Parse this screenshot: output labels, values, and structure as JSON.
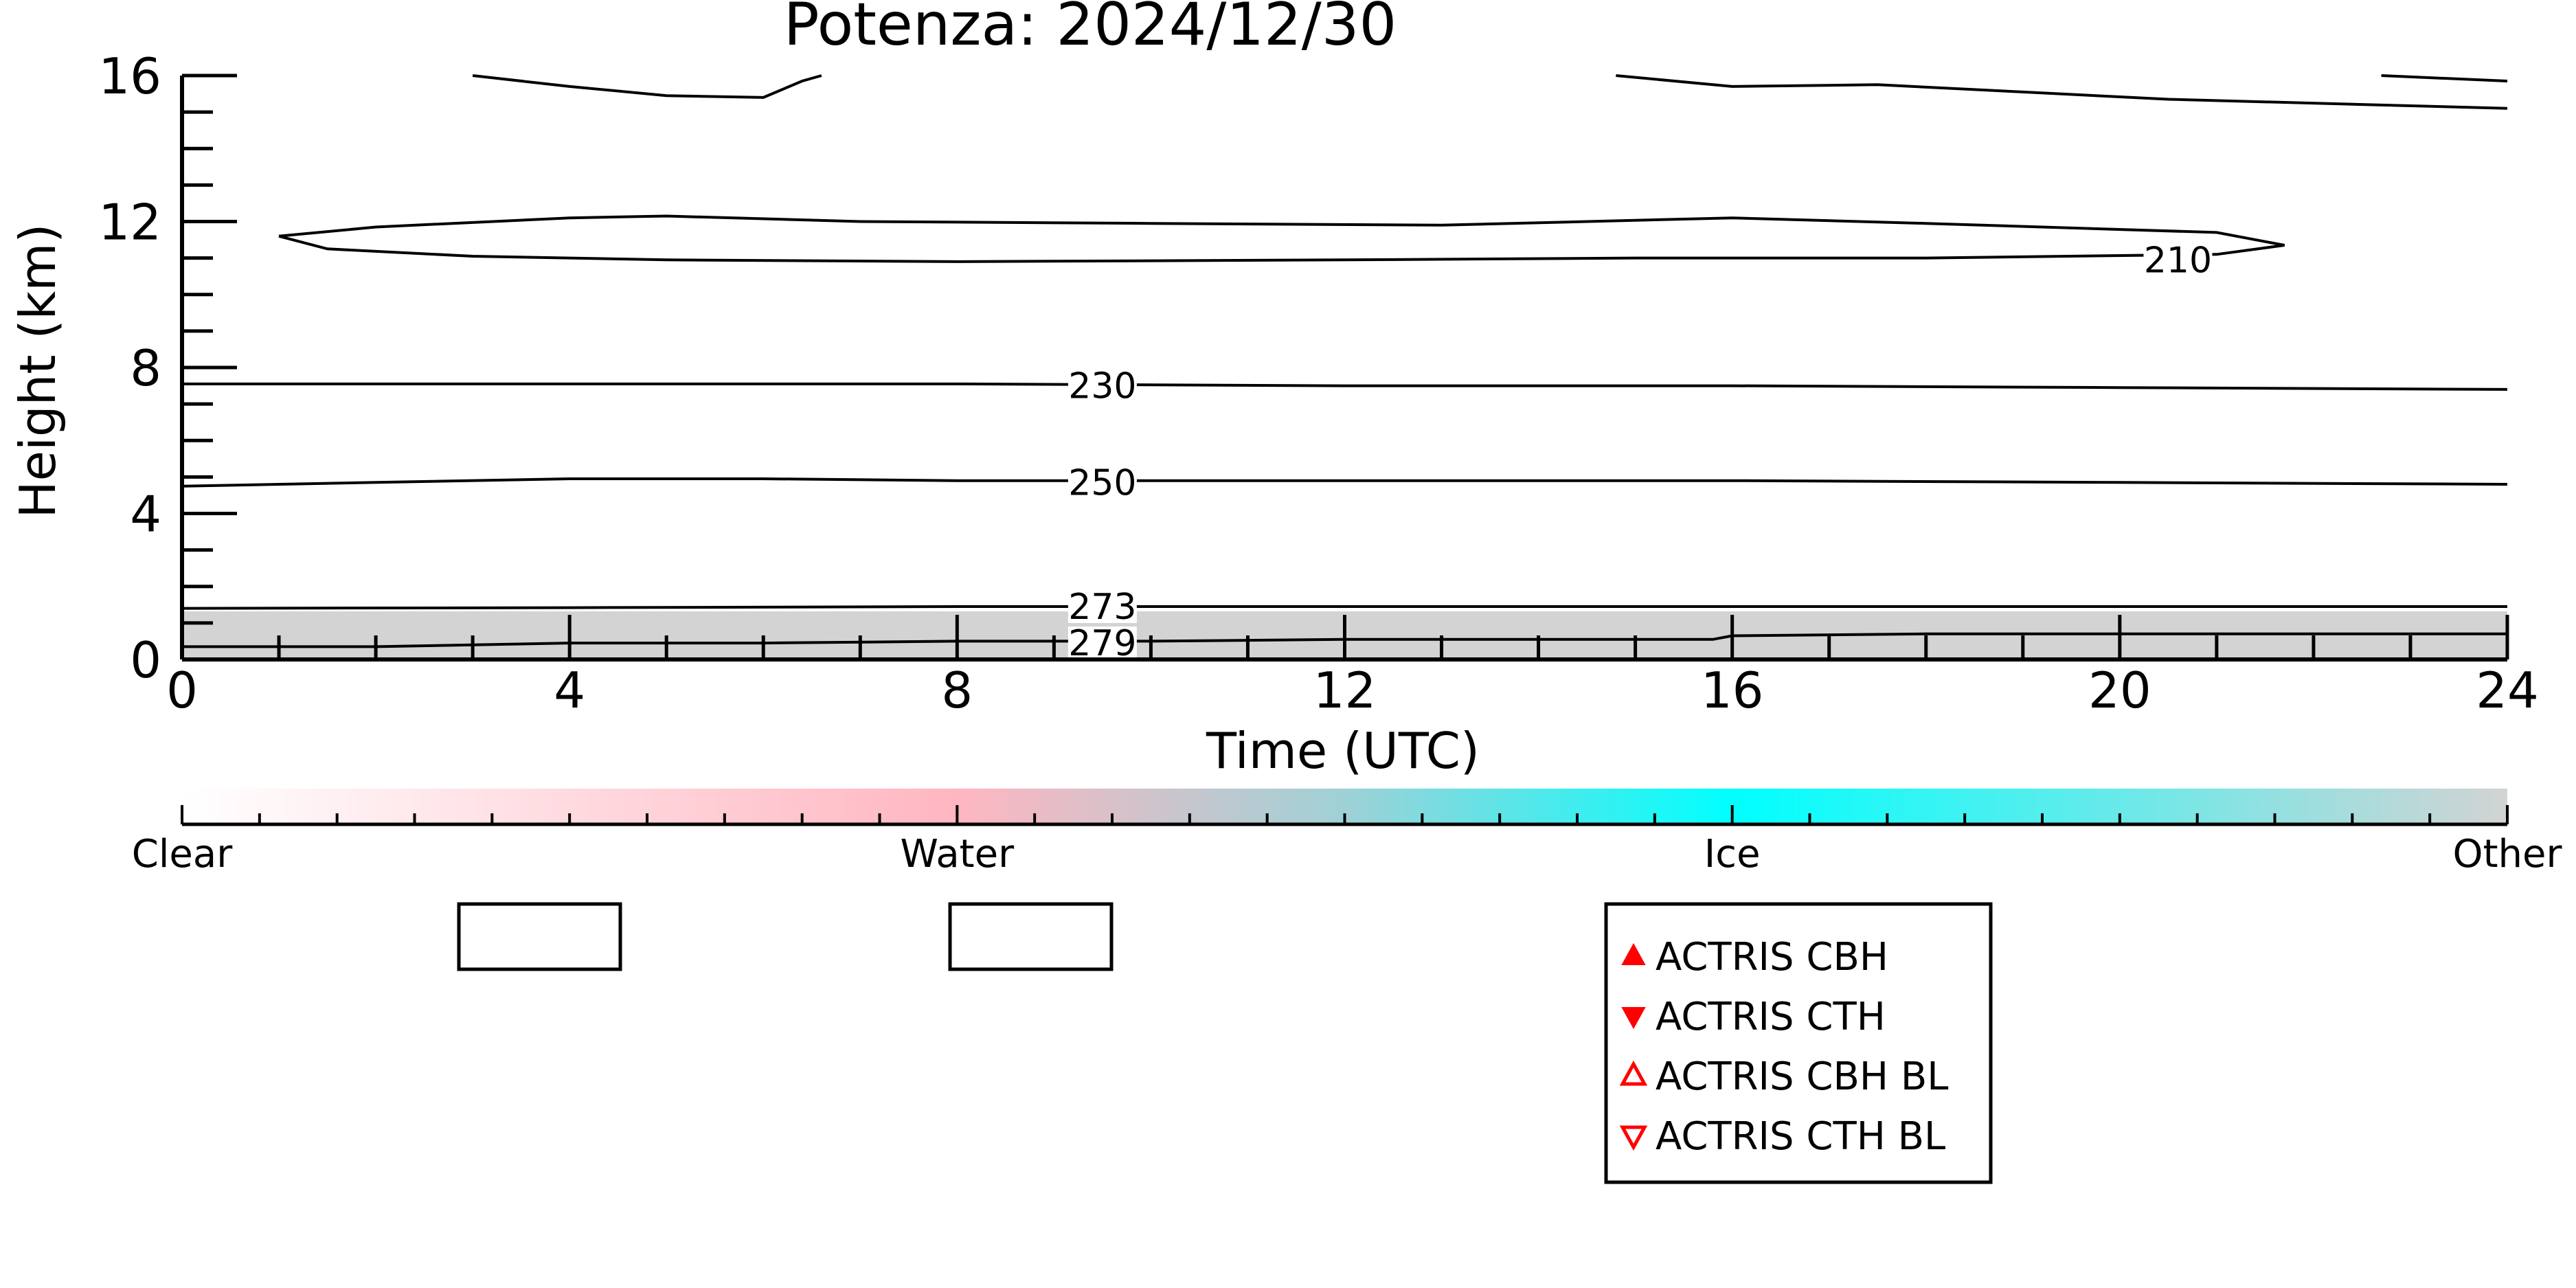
{
  "chart_data": {
    "type": "heatmap",
    "title": "Potenza: 2024/12/30",
    "xlabel": "Time (UTC)",
    "ylabel": "Height (km)",
    "xlim": [
      0,
      24
    ],
    "ylim": [
      0,
      16
    ],
    "x_ticks": [
      0,
      4,
      8,
      12,
      16,
      20,
      24
    ],
    "y_ticks": [
      0,
      4,
      8,
      12,
      16
    ],
    "field": {
      "description_class": "Other",
      "color": "#d3d3d3",
      "top_km": [
        1.3,
        1.35,
        1.25,
        1.3,
        1.35,
        1.3,
        1.3,
        1.25,
        1.3,
        1.3,
        1.3,
        1.25,
        1.3
      ]
    },
    "contours": [
      {
        "label": "279",
        "label_at": [
          9.5,
          0.45
        ],
        "points": [
          [
            0,
            0.35
          ],
          [
            2,
            0.35
          ],
          [
            4,
            0.45
          ],
          [
            6,
            0.45
          ],
          [
            8,
            0.5
          ],
          [
            10,
            0.5
          ],
          [
            12,
            0.55
          ],
          [
            15.8,
            0.55
          ],
          [
            16,
            0.65
          ],
          [
            18,
            0.7
          ],
          [
            20,
            0.7
          ],
          [
            24,
            0.7
          ]
        ]
      },
      {
        "label": "273",
        "label_at": [
          9.5,
          1.45
        ],
        "points": [
          [
            0,
            1.4
          ],
          [
            4,
            1.42
          ],
          [
            8,
            1.45
          ],
          [
            12,
            1.45
          ],
          [
            16,
            1.45
          ],
          [
            20,
            1.45
          ],
          [
            24,
            1.45
          ]
        ]
      },
      {
        "label": "250",
        "label_at": [
          9.5,
          4.85
        ],
        "points": [
          [
            0,
            4.75
          ],
          [
            2,
            4.85
          ],
          [
            4,
            4.95
          ],
          [
            6,
            4.95
          ],
          [
            8,
            4.9
          ],
          [
            10,
            4.9
          ],
          [
            12,
            4.9
          ],
          [
            16,
            4.9
          ],
          [
            20,
            4.85
          ],
          [
            24,
            4.8
          ]
        ]
      },
      {
        "label": "230",
        "label_at": [
          9.5,
          7.5
        ],
        "points": [
          [
            0,
            7.55
          ],
          [
            4,
            7.55
          ],
          [
            8,
            7.55
          ],
          [
            12,
            7.5
          ],
          [
            16,
            7.5
          ],
          [
            20,
            7.45
          ],
          [
            24,
            7.4
          ]
        ]
      },
      {
        "label": "210",
        "label_at": [
          20.6,
          10.95
        ],
        "closed": true,
        "points": [
          [
            1.0,
            11.6
          ],
          [
            2,
            11.85
          ],
          [
            4,
            12.1
          ],
          [
            5,
            12.15
          ],
          [
            7,
            12.0
          ],
          [
            10,
            11.95
          ],
          [
            13,
            11.9
          ],
          [
            16,
            12.1
          ],
          [
            18,
            11.95
          ],
          [
            21,
            11.7
          ],
          [
            21.7,
            11.35
          ],
          [
            21,
            11.1
          ],
          [
            18,
            11.0
          ],
          [
            15,
            11.0
          ],
          [
            12,
            10.95
          ],
          [
            8,
            10.9
          ],
          [
            5,
            10.95
          ],
          [
            3,
            11.05
          ],
          [
            1.5,
            11.25
          ],
          [
            1.0,
            11.6
          ]
        ]
      },
      {
        "label": "",
        "points": [
          [
            3.0,
            16.0
          ],
          [
            4,
            15.7
          ],
          [
            5,
            15.45
          ],
          [
            6.0,
            15.4
          ],
          [
            6.4,
            15.85
          ],
          [
            6.6,
            16.0
          ]
        ]
      },
      {
        "label": "",
        "points": [
          [
            14.8,
            16.0
          ],
          [
            16,
            15.7
          ],
          [
            17.5,
            15.75
          ],
          [
            19,
            15.55
          ],
          [
            20.5,
            15.35
          ],
          [
            24,
            15.1
          ]
        ]
      },
      {
        "label": "",
        "points": [
          [
            22.7,
            16.0
          ],
          [
            24,
            15.85
          ]
        ]
      }
    ],
    "colorbar": {
      "labels": [
        "Clear",
        "Water",
        "Ice",
        "Other"
      ],
      "stops": [
        {
          "at": 0.0,
          "color": "#ffffff"
        },
        {
          "at": 0.333,
          "color": "#ffb6c1"
        },
        {
          "at": 0.5,
          "color": "#9fd1d6"
        },
        {
          "at": 0.667,
          "color": "#00ffff"
        },
        {
          "at": 1.0,
          "color": "#d3d3d3"
        }
      ]
    },
    "legend": {
      "placement": "bottom",
      "entries": [
        {
          "label": "ACTRIS CBH",
          "marker": "triangle-up-filled",
          "color": "#ff0000"
        },
        {
          "label": "ACTRIS CTH",
          "marker": "triangle-down-filled",
          "color": "#ff0000"
        },
        {
          "label": "ACTRIS CBH BL",
          "marker": "triangle-up-open",
          "color": "#ff0000"
        },
        {
          "label": "ACTRIS CTH BL",
          "marker": "triangle-down-open",
          "color": "#ff0000"
        }
      ]
    }
  }
}
